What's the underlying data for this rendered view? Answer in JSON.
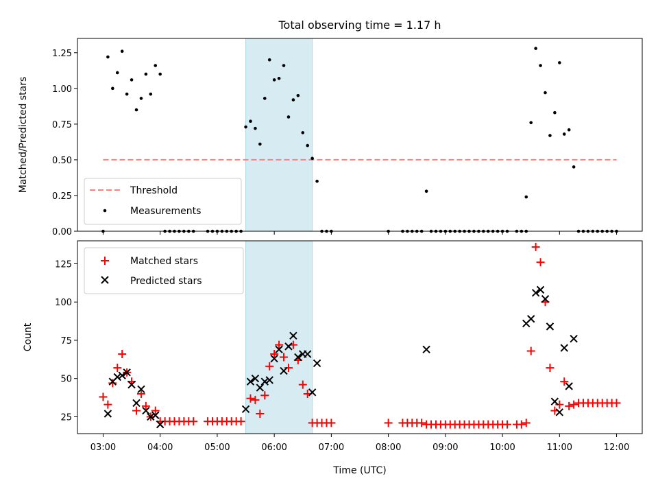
{
  "chart_data": [
    {
      "type": "scatter",
      "title": "Total observing time = 1.17 h",
      "xlabel": "",
      "ylabel": "Matched/Predicted stars",
      "xlim": [
        "02:33",
        "12:27"
      ],
      "ylim": [
        0,
        1.35
      ],
      "yticks": [
        "0.00",
        "0.25",
        "0.50",
        "0.75",
        "1.00",
        "1.25"
      ],
      "shaded_span": [
        "05:30",
        "06:40"
      ],
      "threshold": {
        "name": "Threshold",
        "y": 0.5,
        "x_range": [
          "03:00",
          "12:00"
        ],
        "color": "#ff7f7f",
        "style": "dashed"
      },
      "series": [
        {
          "name": "Measurements",
          "color": "#000000",
          "marker": "dot",
          "points": [
            [
              "03:00",
              0.0
            ],
            [
              "03:05",
              1.22
            ],
            [
              "03:10",
              1.0
            ],
            [
              "03:15",
              1.11
            ],
            [
              "03:20",
              1.26
            ],
            [
              "03:25",
              0.96
            ],
            [
              "03:30",
              1.06
            ],
            [
              "03:35",
              0.85
            ],
            [
              "03:40",
              0.93
            ],
            [
              "03:45",
              1.1
            ],
            [
              "03:50",
              0.96
            ],
            [
              "03:55",
              1.16
            ],
            [
              "04:00",
              1.1
            ],
            [
              "04:05",
              0.0
            ],
            [
              "04:10",
              0.0
            ],
            [
              "04:15",
              0.0
            ],
            [
              "04:20",
              0.0
            ],
            [
              "04:25",
              0.0
            ],
            [
              "04:30",
              0.0
            ],
            [
              "04:35",
              0.0
            ],
            [
              "04:50",
              0.0
            ],
            [
              "04:55",
              0.0
            ],
            [
              "05:00",
              0.0
            ],
            [
              "05:05",
              0.0
            ],
            [
              "05:10",
              0.0
            ],
            [
              "05:15",
              0.0
            ],
            [
              "05:20",
              0.0
            ],
            [
              "05:25",
              0.0
            ],
            [
              "05:30",
              0.73
            ],
            [
              "05:35",
              0.77
            ],
            [
              "05:40",
              0.72
            ],
            [
              "05:45",
              0.61
            ],
            [
              "05:50",
              0.93
            ],
            [
              "05:55",
              1.2
            ],
            [
              "06:00",
              1.06
            ],
            [
              "06:05",
              1.07
            ],
            [
              "06:10",
              1.16
            ],
            [
              "06:15",
              0.8
            ],
            [
              "06:20",
              0.92
            ],
            [
              "06:25",
              0.95
            ],
            [
              "06:30",
              0.69
            ],
            [
              "06:35",
              0.6
            ],
            [
              "06:40",
              0.51
            ],
            [
              "06:45",
              0.35
            ],
            [
              "06:50",
              0.0
            ],
            [
              "06:55",
              0.0
            ],
            [
              "07:00",
              0.0
            ],
            [
              "08:00",
              0.0
            ],
            [
              "08:15",
              0.0
            ],
            [
              "08:20",
              0.0
            ],
            [
              "08:25",
              0.0
            ],
            [
              "08:30",
              0.0
            ],
            [
              "08:35",
              0.0
            ],
            [
              "08:40",
              0.28
            ],
            [
              "08:45",
              0.0
            ],
            [
              "08:50",
              0.0
            ],
            [
              "08:55",
              0.0
            ],
            [
              "09:00",
              0.0
            ],
            [
              "09:05",
              0.0
            ],
            [
              "09:10",
              0.0
            ],
            [
              "09:15",
              0.0
            ],
            [
              "09:20",
              0.0
            ],
            [
              "09:25",
              0.0
            ],
            [
              "09:30",
              0.0
            ],
            [
              "09:35",
              0.0
            ],
            [
              "09:40",
              0.0
            ],
            [
              "09:45",
              0.0
            ],
            [
              "09:50",
              0.0
            ],
            [
              "09:55",
              0.0
            ],
            [
              "10:00",
              0.0
            ],
            [
              "10:05",
              0.0
            ],
            [
              "10:15",
              0.0
            ],
            [
              "10:20",
              0.0
            ],
            [
              "10:25",
              0.0
            ],
            [
              "10:25",
              0.24
            ],
            [
              "10:30",
              0.76
            ],
            [
              "10:35",
              1.28
            ],
            [
              "10:40",
              1.16
            ],
            [
              "10:45",
              0.97
            ],
            [
              "10:50",
              0.67
            ],
            [
              "10:55",
              0.83
            ],
            [
              "11:00",
              1.18
            ],
            [
              "11:05",
              0.68
            ],
            [
              "11:10",
              0.71
            ],
            [
              "11:15",
              0.45
            ],
            [
              "11:20",
              0.0
            ],
            [
              "11:25",
              0.0
            ],
            [
              "11:30",
              0.0
            ],
            [
              "11:35",
              0.0
            ],
            [
              "11:40",
              0.0
            ],
            [
              "11:45",
              0.0
            ],
            [
              "11:50",
              0.0
            ],
            [
              "11:55",
              0.0
            ],
            [
              "12:00",
              0.0
            ]
          ]
        }
      ],
      "legend": {
        "placement": "lower-left",
        "entries": [
          "Threshold",
          "Measurements"
        ]
      }
    },
    {
      "type": "scatter",
      "title": "",
      "xlabel": "Time (UTC)",
      "ylabel": "Count",
      "xlim": [
        "02:33",
        "12:27"
      ],
      "ylim": [
        14,
        140
      ],
      "xticks": [
        "03:00",
        "04:00",
        "05:00",
        "06:00",
        "07:00",
        "08:00",
        "09:00",
        "10:00",
        "11:00",
        "12:00"
      ],
      "yticks": [
        "25",
        "50",
        "75",
        "100",
        "125"
      ],
      "shaded_span": [
        "05:30",
        "06:40"
      ],
      "series": [
        {
          "name": "Matched stars",
          "color": "#ff0000",
          "marker": "plus",
          "points": [
            [
              "03:00",
              38
            ],
            [
              "03:05",
              33
            ],
            [
              "03:10",
              47
            ],
            [
              "03:15",
              57
            ],
            [
              "03:20",
              66
            ],
            [
              "03:25",
              54
            ],
            [
              "03:30",
              48
            ],
            [
              "03:35",
              29
            ],
            [
              "03:40",
              40
            ],
            [
              "03:45",
              32
            ],
            [
              "03:50",
              25
            ],
            [
              "03:55",
              29
            ],
            [
              "04:00",
              22
            ],
            [
              "04:05",
              22
            ],
            [
              "04:10",
              22
            ],
            [
              "04:15",
              22
            ],
            [
              "04:20",
              22
            ],
            [
              "04:25",
              22
            ],
            [
              "04:30",
              22
            ],
            [
              "04:35",
              22
            ],
            [
              "04:50",
              22
            ],
            [
              "04:55",
              22
            ],
            [
              "05:00",
              22
            ],
            [
              "05:05",
              22
            ],
            [
              "05:10",
              22
            ],
            [
              "05:15",
              22
            ],
            [
              "05:20",
              22
            ],
            [
              "05:25",
              22
            ],
            [
              "05:35",
              37
            ],
            [
              "05:40",
              36
            ],
            [
              "05:45",
              27
            ],
            [
              "05:50",
              39
            ],
            [
              "05:55",
              58
            ],
            [
              "06:00",
              66
            ],
            [
              "06:05",
              72
            ],
            [
              "06:10",
              64
            ],
            [
              "06:15",
              57
            ],
            [
              "06:20",
              72
            ],
            [
              "06:25",
              62
            ],
            [
              "06:30",
              46
            ],
            [
              "06:35",
              40
            ],
            [
              "06:40",
              21
            ],
            [
              "06:45",
              21
            ],
            [
              "06:50",
              21
            ],
            [
              "06:55",
              21
            ],
            [
              "07:00",
              21
            ],
            [
              "08:00",
              21
            ],
            [
              "08:15",
              21
            ],
            [
              "08:20",
              21
            ],
            [
              "08:25",
              21
            ],
            [
              "08:30",
              21
            ],
            [
              "08:35",
              21
            ],
            [
              "08:40",
              20
            ],
            [
              "08:45",
              20
            ],
            [
              "08:50",
              20
            ],
            [
              "08:55",
              20
            ],
            [
              "09:00",
              20
            ],
            [
              "09:05",
              20
            ],
            [
              "09:10",
              20
            ],
            [
              "09:15",
              20
            ],
            [
              "09:20",
              20
            ],
            [
              "09:25",
              20
            ],
            [
              "09:30",
              20
            ],
            [
              "09:35",
              20
            ],
            [
              "09:40",
              20
            ],
            [
              "09:45",
              20
            ],
            [
              "09:50",
              20
            ],
            [
              "09:55",
              20
            ],
            [
              "10:00",
              20
            ],
            [
              "10:05",
              20
            ],
            [
              "10:15",
              20
            ],
            [
              "10:20",
              20
            ],
            [
              "10:25",
              21
            ],
            [
              "10:30",
              68
            ],
            [
              "10:35",
              136
            ],
            [
              "10:40",
              126
            ],
            [
              "10:45",
              100
            ],
            [
              "10:50",
              57
            ],
            [
              "10:55",
              29
            ],
            [
              "11:00",
              33
            ],
            [
              "11:05",
              48
            ],
            [
              "11:10",
              32
            ],
            [
              "11:15",
              33
            ],
            [
              "11:20",
              34
            ],
            [
              "11:25",
              34
            ],
            [
              "11:30",
              34
            ],
            [
              "11:35",
              34
            ],
            [
              "11:40",
              34
            ],
            [
              "11:45",
              34
            ],
            [
              "11:50",
              34
            ],
            [
              "11:55",
              34
            ],
            [
              "12:00",
              34
            ]
          ]
        },
        {
          "name": "Predicted stars",
          "color": "#000000",
          "marker": "x",
          "points": [
            [
              "03:05",
              27
            ],
            [
              "03:10",
              48
            ],
            [
              "03:15",
              51
            ],
            [
              "03:20",
              52
            ],
            [
              "03:25",
              54
            ],
            [
              "03:30",
              46
            ],
            [
              "03:35",
              34
            ],
            [
              "03:40",
              43
            ],
            [
              "03:45",
              29
            ],
            [
              "03:50",
              25
            ],
            [
              "03:55",
              26
            ],
            [
              "04:00",
              20
            ],
            [
              "05:30",
              30
            ],
            [
              "05:35",
              48
            ],
            [
              "05:40",
              50
            ],
            [
              "05:45",
              44
            ],
            [
              "05:50",
              48
            ],
            [
              "05:55",
              49
            ],
            [
              "06:00",
              63
            ],
            [
              "06:05",
              69
            ],
            [
              "06:10",
              55
            ],
            [
              "06:15",
              71
            ],
            [
              "06:20",
              78
            ],
            [
              "06:25",
              64
            ],
            [
              "06:30",
              66
            ],
            [
              "06:35",
              66
            ],
            [
              "06:40",
              41
            ],
            [
              "06:45",
              60
            ],
            [
              "08:40",
              69
            ],
            [
              "10:25",
              86
            ],
            [
              "10:30",
              89
            ],
            [
              "10:35",
              106
            ],
            [
              "10:40",
              108
            ],
            [
              "10:45",
              102
            ],
            [
              "10:50",
              84
            ],
            [
              "10:55",
              35
            ],
            [
              "11:00",
              28
            ],
            [
              "11:05",
              70
            ],
            [
              "11:10",
              45
            ],
            [
              "11:15",
              76
            ]
          ]
        }
      ],
      "legend": {
        "placement": "top-left",
        "entries": [
          "Matched stars",
          "Predicted stars"
        ]
      }
    }
  ]
}
